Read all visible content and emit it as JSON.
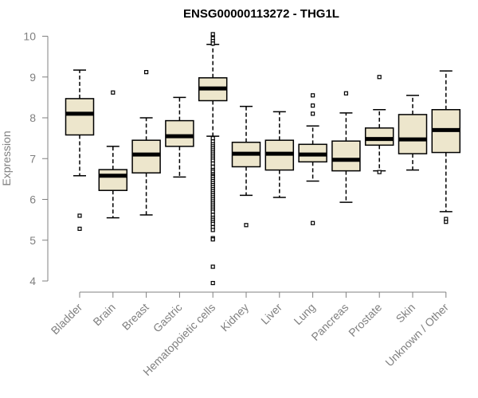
{
  "chart_data": {
    "type": "boxplot",
    "title": "ENSG00000113272 - THG1L",
    "ylabel": "Expression",
    "xlabel": "",
    "ylim": [
      3.9,
      10.2
    ],
    "yticks": [
      4,
      5,
      6,
      7,
      8,
      9,
      10
    ],
    "box_fill": "#ede6cc",
    "box_stroke": "#000000",
    "categories": [
      "Bladder",
      "Brain",
      "Breast",
      "Gastric",
      "Hematopoietic cells",
      "Kidney",
      "Liver",
      "Lung",
      "Pancreas",
      "Prostate",
      "Skin",
      "Unknown / Other"
    ],
    "boxes": [
      {
        "whislo": 6.58,
        "q1": 7.58,
        "med": 8.1,
        "q3": 8.47,
        "whishi": 9.17,
        "fliers": [
          5.6,
          5.28
        ]
      },
      {
        "whislo": 5.55,
        "q1": 6.22,
        "med": 6.58,
        "q3": 6.73,
        "whishi": 7.3,
        "fliers": [
          8.62
        ]
      },
      {
        "whislo": 5.62,
        "q1": 6.65,
        "med": 7.1,
        "q3": 7.45,
        "whishi": 8.0,
        "fliers": [
          9.12
        ]
      },
      {
        "whislo": 6.55,
        "q1": 7.3,
        "med": 7.55,
        "q3": 7.93,
        "whishi": 8.5,
        "fliers": []
      },
      {
        "whislo": 7.55,
        "q1": 8.42,
        "med": 8.72,
        "q3": 8.98,
        "whishi": 9.8,
        "fliers": [
          10.05,
          9.95,
          9.88,
          9.82,
          7.5,
          7.42,
          7.35,
          7.3,
          7.25,
          7.2,
          7.15,
          7.1,
          7.05,
          7.0,
          6.95,
          6.88,
          6.8,
          6.72,
          6.68,
          6.62,
          6.58,
          6.55,
          6.5,
          6.45,
          6.4,
          6.35,
          6.3,
          6.25,
          6.2,
          6.15,
          6.1,
          6.05,
          6.0,
          5.95,
          5.9,
          5.85,
          5.8,
          5.75,
          5.7,
          5.62,
          5.55,
          5.5,
          5.45,
          5.4,
          5.32,
          5.25,
          5.05,
          5.02,
          4.35,
          3.95
        ]
      },
      {
        "whislo": 6.1,
        "q1": 6.8,
        "med": 7.12,
        "q3": 7.4,
        "whishi": 8.28,
        "fliers": [
          5.37
        ]
      },
      {
        "whislo": 6.05,
        "q1": 6.72,
        "med": 7.12,
        "q3": 7.45,
        "whishi": 8.15,
        "fliers": []
      },
      {
        "whislo": 6.45,
        "q1": 6.92,
        "med": 7.1,
        "q3": 7.35,
        "whishi": 7.8,
        "fliers": [
          8.55,
          8.3,
          8.1,
          5.42
        ]
      },
      {
        "whislo": 5.93,
        "q1": 6.7,
        "med": 6.97,
        "q3": 7.43,
        "whishi": 8.12,
        "fliers": [
          8.6
        ]
      },
      {
        "whislo": 6.7,
        "q1": 7.33,
        "med": 7.48,
        "q3": 7.75,
        "whishi": 8.2,
        "fliers": [
          9.0,
          6.67
        ]
      },
      {
        "whislo": 6.72,
        "q1": 7.12,
        "med": 7.47,
        "q3": 8.08,
        "whishi": 8.55,
        "fliers": []
      },
      {
        "whislo": 5.7,
        "q1": 7.15,
        "med": 7.7,
        "q3": 8.2,
        "whishi": 9.15,
        "fliers": [
          5.52,
          5.45
        ]
      }
    ]
  }
}
